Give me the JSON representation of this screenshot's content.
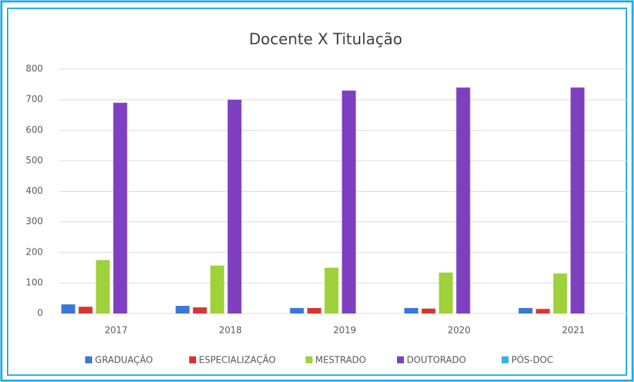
{
  "chart_data": {
    "type": "bar",
    "title": "Docente X Titulação",
    "categories": [
      "2017",
      "2018",
      "2019",
      "2020",
      "2021"
    ],
    "series": [
      {
        "name": "GRADUAÇÃO",
        "color": "#3b78d6",
        "values": [
          30,
          25,
          18,
          18,
          18
        ]
      },
      {
        "name": "ESPECIALIZAÇÃO",
        "color": "#d93434",
        "values": [
          22,
          20,
          18,
          16,
          15
        ]
      },
      {
        "name": "MESTRADO",
        "color": "#9fd13a",
        "values": [
          175,
          157,
          150,
          134,
          131
        ]
      },
      {
        "name": "DOUTORADO",
        "color": "#7e40c0",
        "values": [
          690,
          700,
          730,
          740,
          740
        ]
      },
      {
        "name": "PÓS-DOC",
        "color": "#33b5dd",
        "values": [
          0,
          0,
          0,
          0,
          0
        ]
      }
    ],
    "ylim": [
      0,
      800
    ],
    "yticks": [
      0,
      100,
      200,
      300,
      400,
      500,
      600,
      700,
      800
    ],
    "grid": true,
    "legend": "bottom"
  }
}
